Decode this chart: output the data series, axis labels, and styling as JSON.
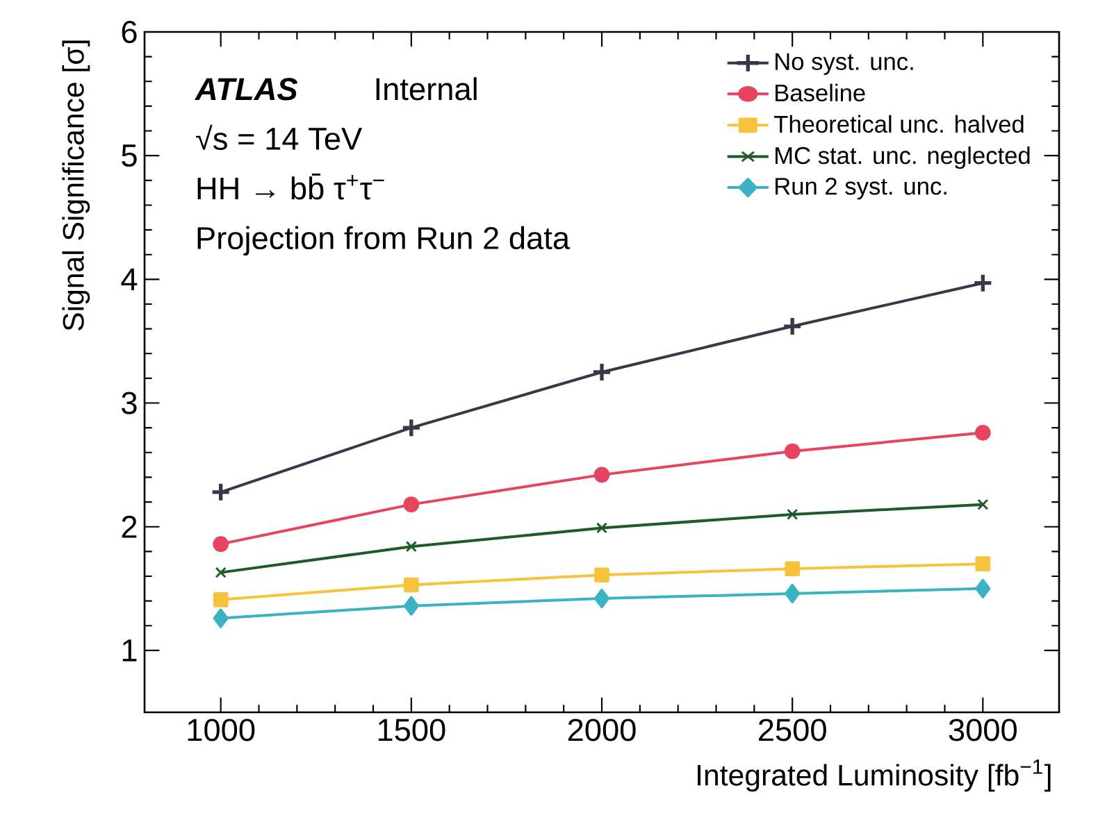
{
  "chart_data": {
    "type": "line",
    "xlabel": "Integrated Luminosity [fb$^{−1}$]",
    "ylabel": "Signal Significance [σ]",
    "annotations": [
      "ATLAS",
      "Internal",
      "√s = 14 TeV",
      "HH → bb̄ τ$^{+}$τ$^{−}$",
      "Projection from Run 2 data"
    ],
    "x": [
      1000,
      1500,
      2000,
      2500,
      3000
    ],
    "series": [
      {
        "name": "No syst. unc.",
        "color": "#353a4a",
        "marker": "plus",
        "values": [
          2.28,
          2.8,
          3.25,
          3.62,
          3.97
        ]
      },
      {
        "name": "Baseline",
        "color": "#e8435f",
        "marker": "circle",
        "values": [
          1.86,
          2.18,
          2.42,
          2.61,
          2.76
        ]
      },
      {
        "name": "Theoretical unc. halved",
        "color": "#f7c23c",
        "marker": "square",
        "values": [
          1.41,
          1.53,
          1.61,
          1.66,
          1.7
        ]
      },
      {
        "name": "MC stat. unc. neglected",
        "color": "#1e5a2a",
        "marker": "cross",
        "values": [
          1.63,
          1.84,
          1.99,
          2.1,
          2.18
        ]
      },
      {
        "name": "Run 2 syst. unc.",
        "color": "#3bb3c3",
        "marker": "diamond",
        "values": [
          1.26,
          1.36,
          1.42,
          1.46,
          1.5
        ]
      }
    ],
    "xlim": [
      800,
      3200
    ],
    "ylim": [
      0.5,
      6
    ],
    "xticks": [
      1000,
      1500,
      2000,
      2500,
      3000
    ],
    "yticks": [
      1,
      2,
      3,
      4,
      5,
      6
    ],
    "grid": false,
    "legend": "top right",
    "line_style": "solid"
  }
}
